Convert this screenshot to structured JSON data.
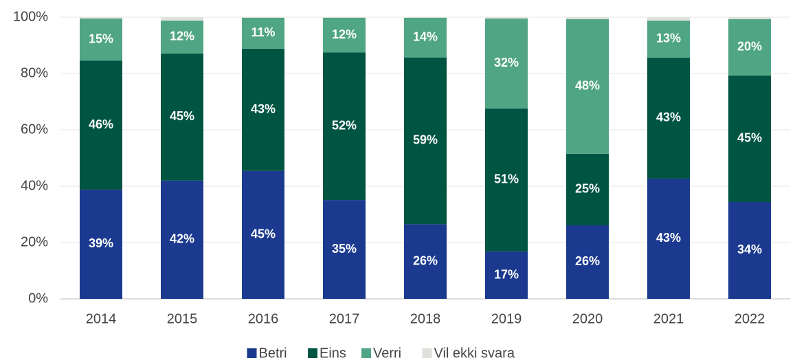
{
  "chart_data": {
    "type": "stacked_bar",
    "categories": [
      "2014",
      "2015",
      "2016",
      "2017",
      "2018",
      "2019",
      "2020",
      "2021",
      "2022"
    ],
    "series": [
      {
        "name": "Betri",
        "color": "#1b3a8f",
        "values": [
          38.8,
          42.0,
          45.4,
          35.1,
          26.5,
          16.8,
          26.1,
          42.7,
          34.4
        ],
        "value_labels": [
          "39%",
          "42%",
          "45%",
          "35%",
          "26%",
          "17%",
          "26%",
          "43%",
          "34%"
        ]
      },
      {
        "name": "Eins",
        "color": "#005442",
        "values": [
          45.8,
          45.1,
          43.4,
          52.4,
          59.2,
          50.8,
          25.4,
          42.9,
          44.9
        ],
        "value_labels": [
          "46%",
          "45%",
          "43%",
          "52%",
          "59%",
          "51%",
          "25%",
          "43%",
          "45%"
        ]
      },
      {
        "name": "Verri",
        "color": "#4fa584",
        "values": [
          14.9,
          11.7,
          11.0,
          12.3,
          14.1,
          31.9,
          47.8,
          13.2,
          20.0
        ],
        "value_labels": [
          "15%",
          "12%",
          "11%",
          "12%",
          "14%",
          "32%",
          "48%",
          "13%",
          "20%"
        ]
      },
      {
        "name": "Vil ekki svara",
        "color": "#e0e0dc",
        "values": [
          0.5,
          1.2,
          0.2,
          0.2,
          0.2,
          0.5,
          0.7,
          1.2,
          0.7
        ]
      }
    ],
    "ylim": [
      0,
      100
    ],
    "yticks": [
      {
        "value": 0,
        "label": "0%"
      },
      {
        "value": 20,
        "label": "20%"
      },
      {
        "value": 40,
        "label": "40%"
      },
      {
        "value": 60,
        "label": "60%"
      },
      {
        "value": 80,
        "label": "80%"
      },
      {
        "value": 100,
        "label": "100%"
      }
    ],
    "grid": true,
    "legend": "bottom"
  }
}
